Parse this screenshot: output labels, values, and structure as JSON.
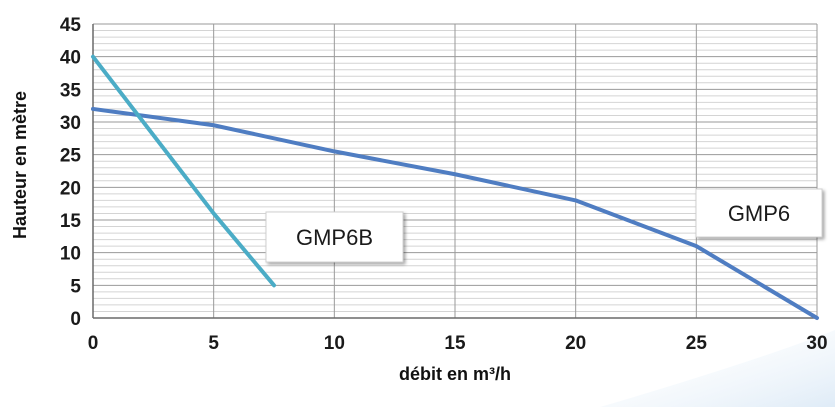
{
  "chart_data": {
    "type": "line",
    "title": "",
    "xlabel": "débit en m³/h",
    "ylabel": "Hauteur en mètre",
    "xlim": [
      0,
      30
    ],
    "ylim": [
      0,
      45
    ],
    "x_ticks": [
      0,
      5,
      10,
      15,
      20,
      25,
      30
    ],
    "y_ticks": [
      0,
      5,
      10,
      15,
      20,
      25,
      30,
      35,
      40,
      45
    ],
    "y_minor_step": 1,
    "grid": true,
    "legend": "none",
    "series": [
      {
        "name": "GMP6",
        "color": "#4f7dc2",
        "x": [
          0,
          5,
          10,
          15,
          20,
          25,
          30
        ],
        "y": [
          32,
          29.5,
          25.5,
          22,
          18,
          11,
          0
        ]
      },
      {
        "name": "GMP6B",
        "color": "#4bacc6",
        "x": [
          0,
          5,
          7.5
        ],
        "y": [
          40,
          16,
          5
        ]
      }
    ],
    "annotations": [
      {
        "text": "GMP6B",
        "series": "GMP6B"
      },
      {
        "text": "GMP6",
        "series": "GMP6"
      }
    ]
  }
}
